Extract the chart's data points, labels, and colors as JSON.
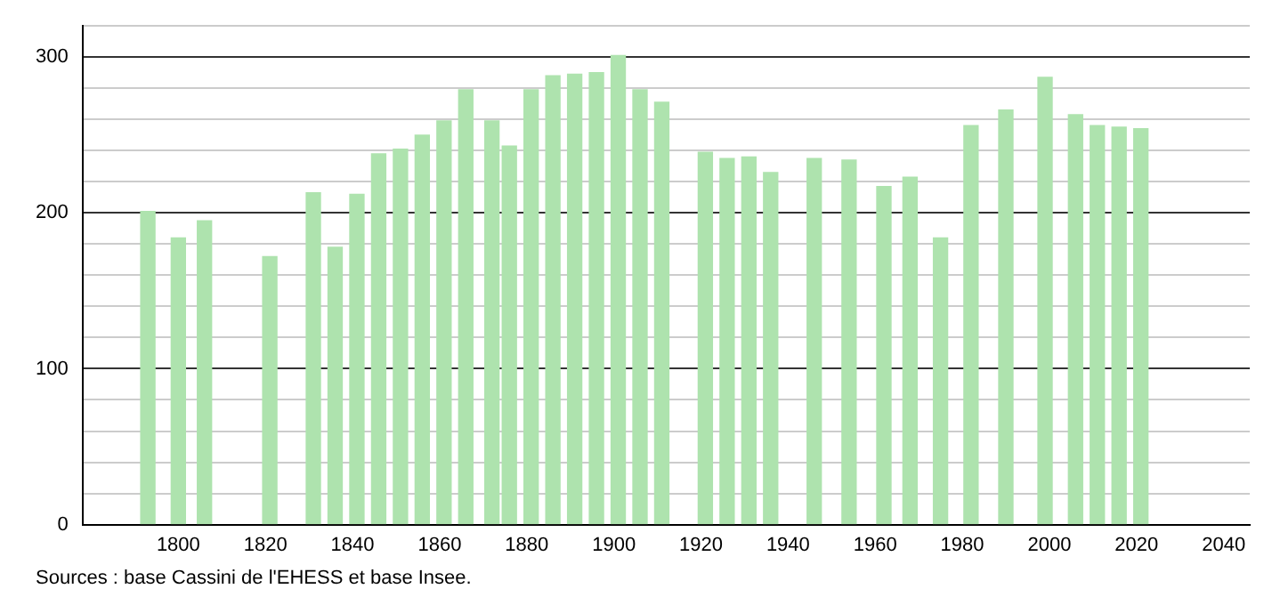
{
  "chart_data": {
    "type": "bar",
    "x": [
      1793,
      1800,
      1806,
      1821,
      1831,
      1836,
      1841,
      1846,
      1851,
      1856,
      1861,
      1866,
      1872,
      1876,
      1881,
      1886,
      1891,
      1896,
      1901,
      1906,
      1911,
      1921,
      1926,
      1931,
      1936,
      1946,
      1954,
      1962,
      1968,
      1975,
      1982,
      1990,
      1999,
      2006,
      2011,
      2016,
      2021
    ],
    "values": [
      201,
      184,
      195,
      172,
      213,
      178,
      212,
      238,
      241,
      250,
      259,
      279,
      259,
      243,
      279,
      288,
      289,
      290,
      301,
      279,
      271,
      239,
      235,
      236,
      226,
      235,
      234,
      217,
      223,
      184,
      256,
      266,
      287,
      263,
      256,
      255,
      254
    ],
    "color": "#aee3ae",
    "xlim": [
      1778,
      2046
    ],
    "xticks": [
      1800,
      1820,
      1840,
      1860,
      1880,
      1900,
      1920,
      1940,
      1960,
      1980,
      2000,
      2020,
      2040
    ],
    "ylim": [
      0,
      320
    ],
    "yticks": [
      0,
      {
        "value": 20,
        "label": null
      },
      {
        "value": 40,
        "label": null
      },
      {
        "value": 60,
        "label": null
      },
      {
        "value": 80,
        "label": null
      },
      100,
      {
        "value": 120,
        "label": null
      },
      {
        "value": 140,
        "label": null
      },
      {
        "value": 160,
        "label": null
      },
      {
        "value": 180,
        "label": null
      },
      200,
      {
        "value": 220,
        "label": null
      },
      {
        "value": 240,
        "label": null
      },
      {
        "value": 260,
        "label": null
      },
      {
        "value": 280,
        "label": null
      },
      300,
      {
        "value": 320,
        "label": null
      }
    ],
    "grid": "y",
    "legend": false,
    "annotations": [
      "Sources : base Cassini de l'EHESS et base Insee."
    ]
  }
}
